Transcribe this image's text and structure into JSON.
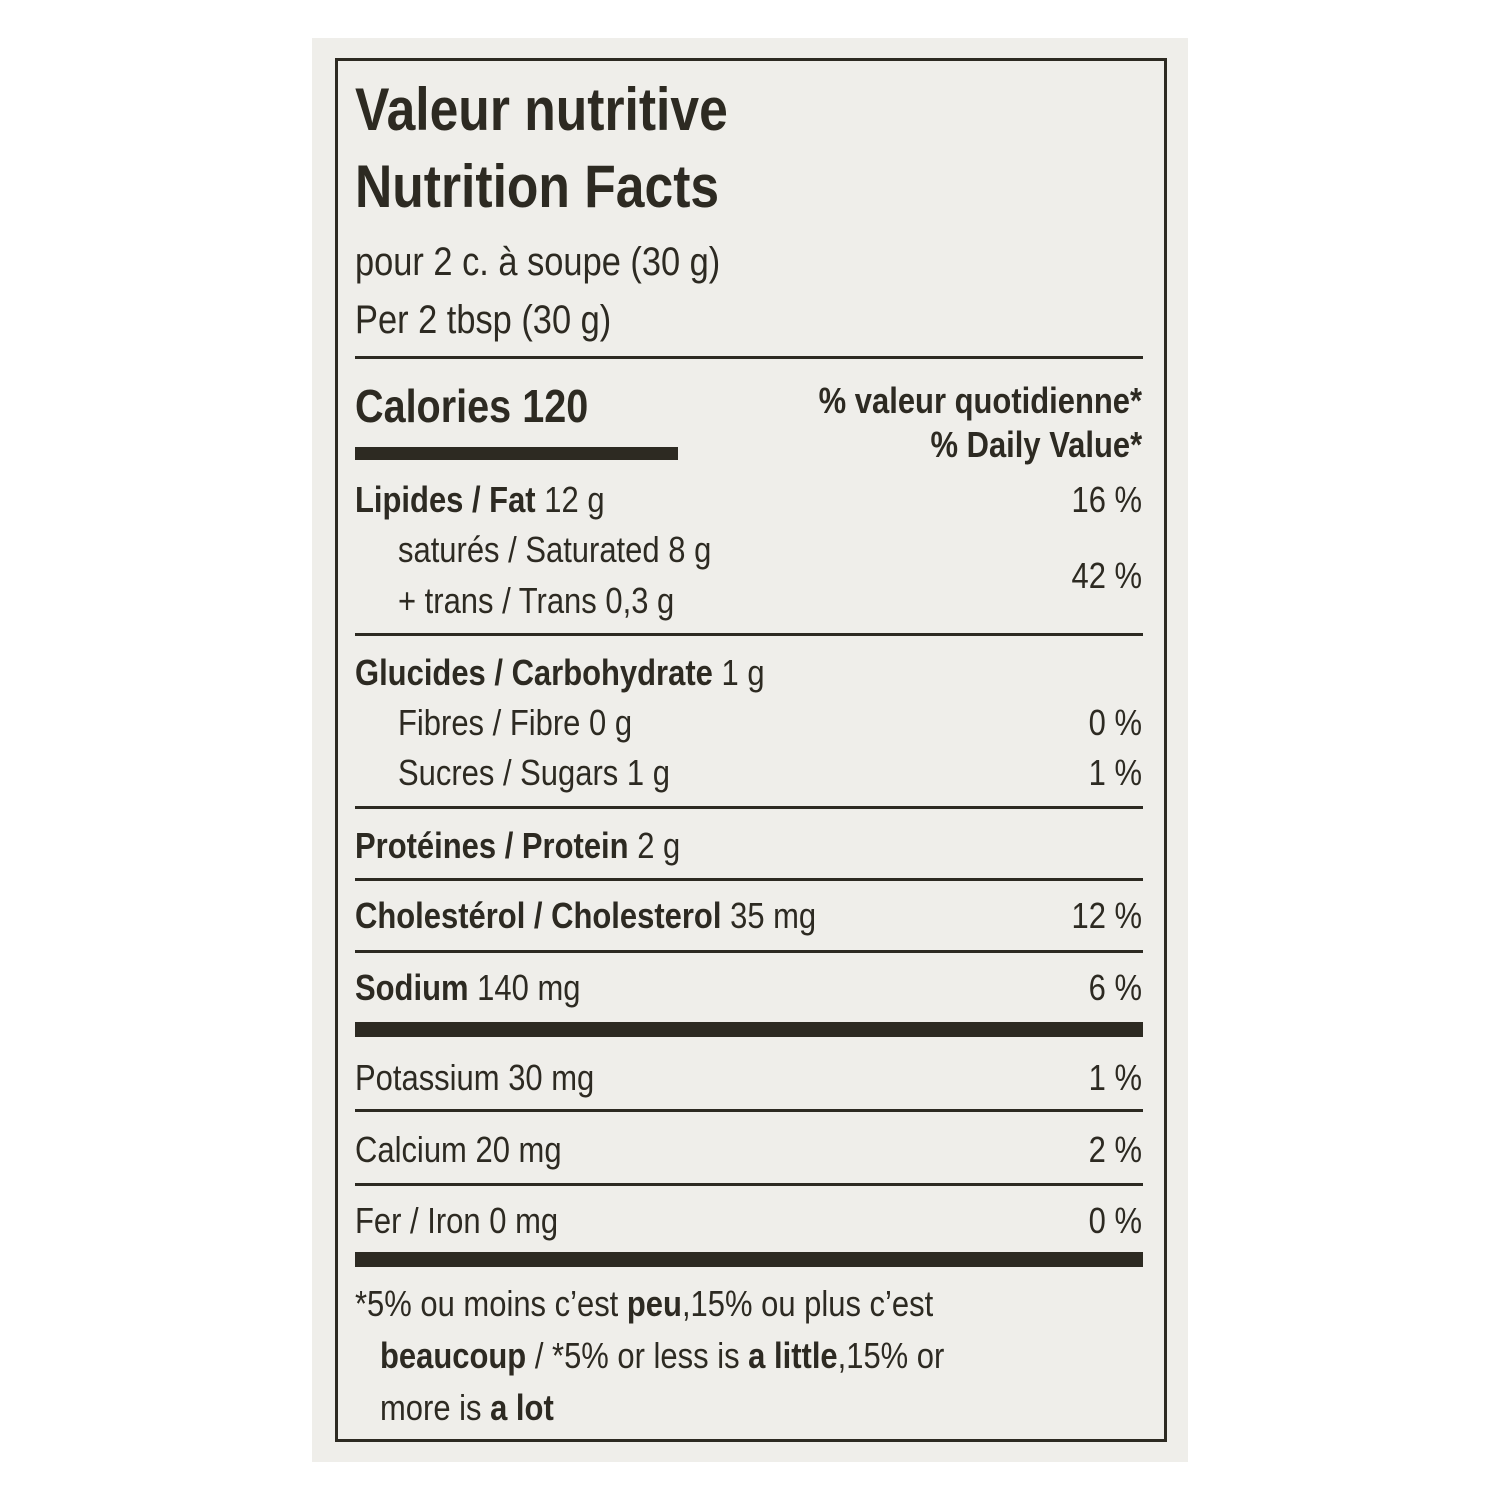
{
  "header": {
    "title_fr": "Valeur nutritive",
    "title_en": "Nutrition Facts",
    "serving_fr": "pour 2 c. à soupe (30 g)",
    "serving_en": "Per 2 tbsp (30 g)"
  },
  "calories": {
    "label": "Calories",
    "amount": "120"
  },
  "daily_value_heading": {
    "fr": "% valeur quotidienne*",
    "en": "% Daily Value*"
  },
  "fat": {
    "name": "Lipides / Fat",
    "amount": "12 g",
    "daily_value": "16 %"
  },
  "saturated": {
    "name": "saturés / Saturated",
    "amount": "8 g"
  },
  "trans": {
    "name": "+ trans / Trans",
    "amount": "0,3 g"
  },
  "saturated_trans_daily_value": "42 %",
  "carbohydrate": {
    "name": "Glucides / Carbohydrate",
    "amount": "1 g"
  },
  "fibre": {
    "name": "Fibres / Fibre",
    "amount": "0 g",
    "daily_value": "0 %"
  },
  "sugars": {
    "name": "Sucres / Sugars",
    "amount": "1 g",
    "daily_value": "1 %"
  },
  "protein": {
    "name": "Protéines / Protein",
    "amount": "2 g"
  },
  "cholesterol": {
    "name": "Cholestérol / Cholesterol",
    "amount": "35 mg",
    "daily_value": "12 %"
  },
  "sodium": {
    "name": "Sodium",
    "amount": "140 mg",
    "daily_value": "6 %"
  },
  "potassium": {
    "name": "Potassium",
    "amount": "30 mg",
    "daily_value": "1 %"
  },
  "calcium": {
    "name": "Calcium",
    "amount": "20 mg",
    "daily_value": "2 %"
  },
  "iron": {
    "name": "Fer / Iron",
    "amount": "0 mg",
    "daily_value": "0 %"
  },
  "footnote": [
    [
      {
        "text": "*5% ou moins c’est ",
        "bold": false
      },
      {
        "text": "peu",
        "bold": true
      },
      {
        "text": ",15% ou plus c’est",
        "bold": false
      }
    ],
    [
      {
        "text": "beaucoup",
        "bold": true
      },
      {
        "text": " / *5% or less is ",
        "bold": false
      },
      {
        "text": "a little",
        "bold": true
      },
      {
        "text": ",15% or",
        "bold": false
      }
    ],
    [
      {
        "text": "more is ",
        "bold": false
      },
      {
        "text": "a lot",
        "bold": true
      }
    ]
  ]
}
